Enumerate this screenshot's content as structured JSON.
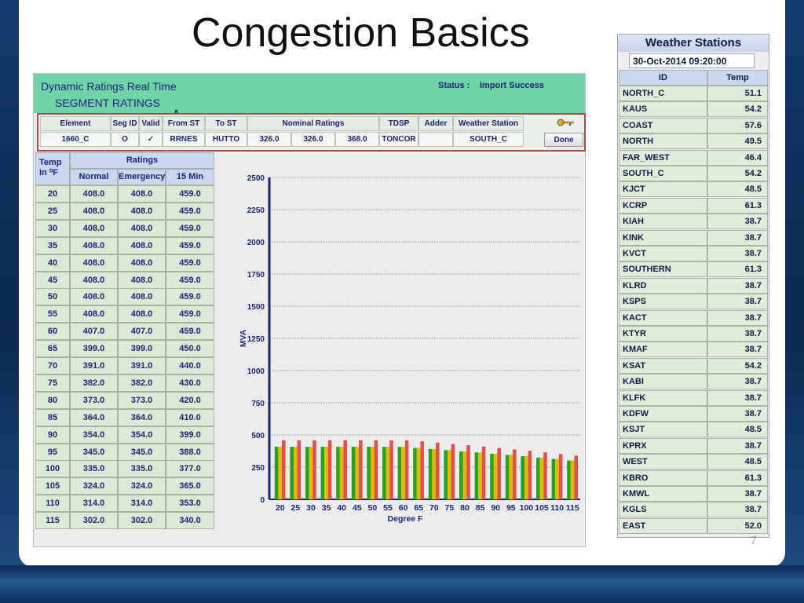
{
  "slide": {
    "title": "Congestion Basics",
    "page_number": "7"
  },
  "app": {
    "title": "Dynamic Ratings Real Time",
    "subtitle": "SEGMENT RATINGS",
    "status_label": "Status :",
    "status_value": "Import Success",
    "segment": {
      "headers": [
        "Element",
        "Seg ID",
        "Valid",
        "From ST",
        "To ST",
        "Nominal Ratings",
        "TDSP",
        "Adder",
        "Weather Station"
      ],
      "element": "1660_C",
      "seg_id": "O",
      "valid": "✓",
      "from_st": "RRNES",
      "to_st": "HUTTO",
      "nominal_ratings": [
        "326.0",
        "326.0",
        "368.0"
      ],
      "tdsp": "TONCOR",
      "adder": "",
      "weather_station": "SOUTH_C",
      "done_label": "Done"
    },
    "ratings_table": {
      "temp_header": "Temp",
      "temp_unit_header": "In ⁰F",
      "group_header": "Ratings",
      "columns": [
        "Normal",
        "Emergency",
        "15 Min"
      ],
      "rows": [
        [
          "20",
          "408.0",
          "408.0",
          "459.0"
        ],
        [
          "25",
          "408.0",
          "408.0",
          "459.0"
        ],
        [
          "30",
          "408.0",
          "408.0",
          "459.0"
        ],
        [
          "35",
          "408.0",
          "408.0",
          "459.0"
        ],
        [
          "40",
          "408.0",
          "408.0",
          "459.0"
        ],
        [
          "45",
          "408.0",
          "408.0",
          "459.0"
        ],
        [
          "50",
          "408.0",
          "408.0",
          "459.0"
        ],
        [
          "55",
          "408.0",
          "408.0",
          "459.0"
        ],
        [
          "60",
          "407.0",
          "407.0",
          "459.0"
        ],
        [
          "65",
          "399.0",
          "399.0",
          "450.0"
        ],
        [
          "70",
          "391.0",
          "391.0",
          "440.0"
        ],
        [
          "75",
          "382.0",
          "382.0",
          "430.0"
        ],
        [
          "80",
          "373.0",
          "373.0",
          "420.0"
        ],
        [
          "85",
          "364.0",
          "364.0",
          "410.0"
        ],
        [
          "90",
          "354.0",
          "354.0",
          "399.0"
        ],
        [
          "95",
          "345.0",
          "345.0",
          "388.0"
        ],
        [
          "100",
          "335.0",
          "335.0",
          "377.0"
        ],
        [
          "105",
          "324.0",
          "324.0",
          "365.0"
        ],
        [
          "110",
          "314.0",
          "314.0",
          "353.0"
        ],
        [
          "115",
          "302.0",
          "302.0",
          "340.0"
        ]
      ]
    }
  },
  "chart_data": {
    "type": "bar",
    "xlabel": "Degree F",
    "ylabel": "MVA",
    "ylim": [
      0,
      2500
    ],
    "yticks": [
      0,
      250,
      500,
      750,
      1000,
      1250,
      1500,
      1750,
      2000,
      2250,
      2500
    ],
    "categories": [
      "20",
      "25",
      "30",
      "35",
      "40",
      "45",
      "50",
      "55",
      "60",
      "65",
      "70",
      "75",
      "80",
      "85",
      "90",
      "95",
      "100",
      "105",
      "110",
      "115"
    ],
    "series": [
      {
        "name": "Normal",
        "color": "#1fa51f",
        "values": [
          408,
          408,
          408,
          408,
          408,
          408,
          408,
          408,
          407,
          399,
          391,
          382,
          373,
          364,
          354,
          345,
          335,
          324,
          314,
          302
        ]
      },
      {
        "name": "Emergency",
        "color": "#e6b800",
        "values": [
          408,
          408,
          408,
          408,
          408,
          408,
          408,
          408,
          407,
          399,
          391,
          382,
          373,
          364,
          354,
          345,
          335,
          324,
          314,
          302
        ]
      },
      {
        "name": "15 Min",
        "color": "#e05050",
        "values": [
          459,
          459,
          459,
          459,
          459,
          459,
          459,
          459,
          459,
          450,
          440,
          430,
          420,
          410,
          399,
          388,
          377,
          365,
          353,
          340
        ]
      }
    ],
    "grid": "horizontal dotted",
    "legend": "none"
  },
  "weather": {
    "title": "Weather Stations",
    "datetime": "30-Oct-2014 09:20:00",
    "col_id": "ID",
    "col_temp": "Temp",
    "stations": [
      {
        "id": "NORTH_C",
        "temp": "51.1"
      },
      {
        "id": "KAUS",
        "temp": "54.2"
      },
      {
        "id": "COAST",
        "temp": "57.6"
      },
      {
        "id": "NORTH",
        "temp": "49.5"
      },
      {
        "id": "FAR_WEST",
        "temp": "46.4"
      },
      {
        "id": "SOUTH_C",
        "temp": "54.2"
      },
      {
        "id": "KJCT",
        "temp": "48.5"
      },
      {
        "id": "KCRP",
        "temp": "61.3"
      },
      {
        "id": "KIAH",
        "temp": "38.7"
      },
      {
        "id": "KINK",
        "temp": "38.7"
      },
      {
        "id": "KVCT",
        "temp": "38.7"
      },
      {
        "id": "SOUTHERN",
        "temp": "61.3"
      },
      {
        "id": "KLRD",
        "temp": "38.7"
      },
      {
        "id": "KSPS",
        "temp": "38.7"
      },
      {
        "id": "KACT",
        "temp": "38.7"
      },
      {
        "id": "KTYR",
        "temp": "38.7"
      },
      {
        "id": "KMAF",
        "temp": "38.7"
      },
      {
        "id": "KSAT",
        "temp": "54.2"
      },
      {
        "id": "KABI",
        "temp": "38.7"
      },
      {
        "id": "KLFK",
        "temp": "38.7"
      },
      {
        "id": "KDFW",
        "temp": "38.7"
      },
      {
        "id": "KSJT",
        "temp": "48.5"
      },
      {
        "id": "KPRX",
        "temp": "38.7"
      },
      {
        "id": "WEST",
        "temp": "48.5"
      },
      {
        "id": "KBRO",
        "temp": "61.3"
      },
      {
        "id": "KMWL",
        "temp": "38.7"
      },
      {
        "id": "KGLS",
        "temp": "38.7"
      },
      {
        "id": "EAST",
        "temp": "52.0"
      }
    ]
  }
}
